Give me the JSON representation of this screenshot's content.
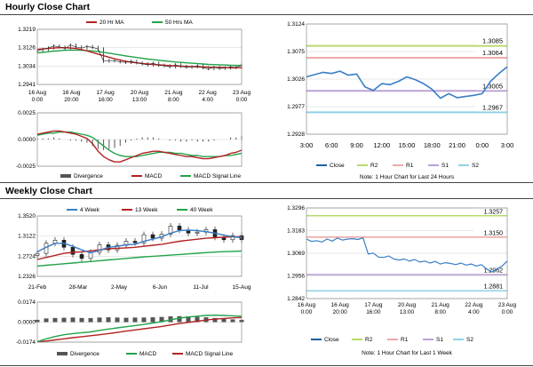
{
  "sections": {
    "hourly_title": "Hourly Close Chart",
    "weekly_title": "Weekly Close Chart"
  },
  "colors": {
    "close": "#1f5f9e",
    "close_light": "#3a7ec6",
    "ma_short": "#b22222",
    "ma_long": "#22a34a",
    "r2": "#b7d96b",
    "r1": "#ecaaa7",
    "s1": "#b9a2d6",
    "s2": "#8fd2e6",
    "grid": "#d0d0d0",
    "divergence": "#555555",
    "candle": "#222222"
  },
  "chart_data": [
    {
      "id": "hourly_price",
      "type": "line",
      "legend": [
        "20 Hr MA",
        "50 Hrs MA"
      ],
      "x_labels": [
        "16 Aug\n0:00",
        "16 Aug\n20:00",
        "17 Aug\n16:00",
        "20 Aug\n13:00",
        "21 Aug\n8:00",
        "22 Aug\n4:00",
        "23 Aug\n0:00"
      ],
      "y_ticks": [
        "1.3219",
        "1.3126",
        "1.3034",
        "1.2941"
      ],
      "ylim": [
        1.2941,
        1.3219
      ],
      "series": [
        {
          "name": "Close",
          "values": [
            1.311,
            1.3118,
            1.3125,
            1.3135,
            1.313,
            1.3122,
            1.314,
            1.313,
            1.3125,
            1.3132,
            1.3128,
            1.312,
            1.3058,
            1.3062,
            1.306,
            1.3055,
            1.3052,
            1.3058,
            1.305,
            1.3045,
            1.304,
            1.3048,
            1.3038,
            1.3035,
            1.303,
            1.304,
            1.3032,
            1.3028,
            1.303,
            1.3035,
            1.3025,
            1.302,
            1.3027,
            1.3022,
            1.3024,
            1.303,
            1.3026,
            1.3038
          ]
        },
        {
          "name": "20 Hr MA",
          "values": [
            1.3118,
            1.312,
            1.3122,
            1.3125,
            1.3126,
            1.3126,
            1.3125,
            1.3122,
            1.3117,
            1.311,
            1.3102,
            1.3094,
            1.3086,
            1.3078,
            1.307,
            1.3064,
            1.3058,
            1.3053,
            1.305,
            1.3047,
            1.3044,
            1.3042,
            1.304,
            1.3038,
            1.3036,
            1.3034,
            1.3033,
            1.3032,
            1.3031,
            1.303,
            1.3029,
            1.3028,
            1.3027,
            1.3026,
            1.3026,
            1.3025,
            1.3025,
            1.3026
          ]
        },
        {
          "name": "50 Hrs MA",
          "values": [
            1.31,
            1.3103,
            1.3106,
            1.3109,
            1.3111,
            1.3113,
            1.3114,
            1.3114,
            1.3113,
            1.3112,
            1.311,
            1.3107,
            1.3103,
            1.3099,
            1.3094,
            1.309,
            1.3085,
            1.3081,
            1.3077,
            1.3073,
            1.3069,
            1.3066,
            1.3063,
            1.306,
            1.3057,
            1.3054,
            1.3052,
            1.305,
            1.3048,
            1.3046,
            1.3044,
            1.3042,
            1.3041,
            1.304,
            1.3039,
            1.3038,
            1.3037,
            1.3037
          ]
        }
      ]
    },
    {
      "id": "hourly_macd",
      "type": "line",
      "legend": [
        "Divergence",
        "MACD",
        "MACD Signal Line"
      ],
      "y_ticks": [
        "0.0025",
        "0.0000",
        "-0.0025"
      ],
      "ylim": [
        -0.0025,
        0.0025
      ],
      "series": [
        {
          "name": "MACD",
          "values": [
            0.0005,
            0.0006,
            0.0007,
            0.0008,
            0.0008,
            0.0007,
            0.0006,
            0.0005,
            0.0003,
            0.0001,
            -0.0004,
            -0.0011,
            -0.0016,
            -0.0019,
            -0.0021,
            -0.0021,
            -0.0019,
            -0.0017,
            -0.0015,
            -0.0013,
            -0.0012,
            -0.0011,
            -0.0011,
            -0.0012,
            -0.0013,
            -0.0014,
            -0.0015,
            -0.0016,
            -0.0016,
            -0.0017,
            -0.0018,
            -0.0018,
            -0.0017,
            -0.0016,
            -0.0015,
            -0.0013,
            -0.0012,
            -0.001
          ]
        },
        {
          "name": "MACD Signal Line",
          "values": [
            0.0004,
            0.0005,
            0.0006,
            0.0006,
            0.0007,
            0.0007,
            0.0007,
            0.0006,
            0.0005,
            0.0004,
            0.0002,
            -0.0002,
            -0.0006,
            -0.001,
            -0.0013,
            -0.0015,
            -0.0016,
            -0.0016,
            -0.0016,
            -0.0015,
            -0.0014,
            -0.0013,
            -0.0012,
            -0.0012,
            -0.0012,
            -0.0013,
            -0.0013,
            -0.0014,
            -0.0015,
            -0.0015,
            -0.0016,
            -0.0016,
            -0.0016,
            -0.0016,
            -0.0015,
            -0.0015,
            -0.0014,
            -0.0013
          ]
        }
      ]
    },
    {
      "id": "hourly_24h",
      "type": "line",
      "note": "Note: 1 Hour Chart for Last 24 Hours",
      "x_labels": [
        "3:00",
        "6:00",
        "9:00",
        "12:00",
        "15:00",
        "18:00",
        "21:00",
        "0:00",
        "3:00"
      ],
      "y_ticks": [
        "1.3124",
        "1.3075",
        "1.3026",
        "1.2977",
        "1.2928"
      ],
      "ylim": [
        1.2928,
        1.3124
      ],
      "levels": [
        {
          "name": "R2",
          "value": 1.3085,
          "label": "1.3085"
        },
        {
          "name": "R1",
          "value": 1.3064,
          "label": "1.3064"
        },
        {
          "name": "S1",
          "value": 1.3005,
          "label": "1.3005"
        },
        {
          "name": "S2",
          "value": 1.2967,
          "label": "1.2967"
        }
      ],
      "legend": [
        "Close",
        "R2",
        "R1",
        "S1",
        "S2"
      ],
      "series": [
        {
          "name": "Close",
          "values": [
            1.303,
            1.3034,
            1.3038,
            1.3036,
            1.304,
            1.3033,
            1.3035,
            1.3012,
            1.3006,
            1.3018,
            1.3016,
            1.3022,
            1.303,
            1.3025,
            1.3018,
            1.3008,
            1.2992,
            1.3,
            1.2993,
            1.2995,
            1.2997,
            1.3,
            1.3022,
            1.3036,
            1.3048
          ]
        }
      ]
    },
    {
      "id": "weekly_price",
      "type": "line",
      "legend": [
        "4 Week",
        "13 Week",
        "40 Week"
      ],
      "x_labels": [
        "21-Feb",
        "28-Mar",
        "2-May",
        "6-Jun",
        "11-Jul",
        "15-Aug"
      ],
      "y_ticks": [
        "1.3520",
        "1.3122",
        "1.2724",
        "1.2326"
      ],
      "ylim": [
        1.2326,
        1.352
      ],
      "series": [
        {
          "name": "Close",
          "values": [
            1.278,
            1.298,
            1.304,
            1.29,
            1.276,
            1.268,
            1.28,
            1.295,
            1.285,
            1.294,
            1.302,
            1.299,
            1.315,
            1.308,
            1.316,
            1.332,
            1.324,
            1.318,
            1.32,
            1.325,
            1.31,
            1.305,
            1.313,
            1.305
          ]
        },
        {
          "name": "4 Week",
          "values": [
            1.281,
            1.29,
            1.298,
            1.298,
            1.292,
            1.285,
            1.279,
            1.284,
            1.29,
            1.292,
            1.295,
            1.296,
            1.302,
            1.306,
            1.311,
            1.318,
            1.323,
            1.324,
            1.323,
            1.321,
            1.318,
            1.314,
            1.311,
            1.309
          ]
        },
        {
          "name": "13 Week",
          "values": [
            1.266,
            1.27,
            1.274,
            1.278,
            1.28,
            1.281,
            1.283,
            1.285,
            1.287,
            1.288,
            1.289,
            1.29,
            1.292,
            1.294,
            1.296,
            1.299,
            1.302,
            1.304,
            1.306,
            1.308,
            1.309,
            1.31,
            1.311,
            1.311
          ]
        },
        {
          "name": "40 Week",
          "values": [
            1.253,
            1.2545,
            1.256,
            1.2575,
            1.259,
            1.2605,
            1.262,
            1.2635,
            1.265,
            1.2665,
            1.268,
            1.2695,
            1.271,
            1.2722,
            1.2734,
            1.2746,
            1.2758,
            1.277,
            1.2782,
            1.2794,
            1.2806,
            1.2814,
            1.282,
            1.2826
          ]
        }
      ]
    },
    {
      "id": "weekly_macd",
      "type": "line",
      "legend": [
        "Divergence",
        "MACD",
        "MACD Signal Line"
      ],
      "y_ticks": [
        "0.0174",
        "0.0000",
        "-0.0174"
      ],
      "ylim": [
        -0.0174,
        0.0174
      ],
      "series": [
        {
          "name": "Divergence",
          "values": [
            0.002,
            0.0032,
            0.0036,
            0.0038,
            0.004,
            0.0036,
            0.0035,
            0.004,
            0.0042,
            0.004,
            0.0038,
            0.004,
            0.004,
            0.0042,
            0.0045,
            0.005,
            0.0052,
            0.005,
            0.0046,
            0.0042,
            0.0036,
            0.003,
            0.0024,
            0.002
          ]
        },
        {
          "name": "MACD",
          "values": [
            -0.017,
            -0.0145,
            -0.0125,
            -0.011,
            -0.01,
            -0.0092,
            -0.0085,
            -0.0072,
            -0.006,
            -0.005,
            -0.004,
            -0.003,
            -0.002,
            -0.0008,
            0.0005,
            0.002,
            0.0035,
            0.0045,
            0.0052,
            0.0058,
            0.006,
            0.0058,
            0.0055,
            0.0052
          ]
        },
        {
          "name": "MACD Signal Line",
          "values": [
            -0.0172,
            -0.0165,
            -0.0155,
            -0.0145,
            -0.0135,
            -0.0127,
            -0.0118,
            -0.011,
            -0.01,
            -0.009,
            -0.0078,
            -0.0068,
            -0.0058,
            -0.0048,
            -0.0038,
            -0.0025,
            -0.0012,
            -0.0002,
            0.0008,
            0.0018,
            0.0026,
            0.0032,
            0.0037,
            0.004
          ]
        }
      ]
    },
    {
      "id": "weekly_1h",
      "type": "line",
      "note": "Note: 1 Hour Chart for Last 1 Week",
      "x_labels": [
        "16 Aug\n0:00",
        "16 Aug\n20:00",
        "17 Aug\n16:00",
        "20 Aug\n13:00",
        "21 Aug\n8:00",
        "22 Aug\n4:00",
        "23 Aug\n0:00"
      ],
      "y_ticks": [
        "1.3296",
        "1.3183",
        "1.3069",
        "1.2956",
        "1.2842"
      ],
      "ylim": [
        1.2842,
        1.3296
      ],
      "levels": [
        {
          "name": "R2",
          "value": 1.3257,
          "label": "1.3257"
        },
        {
          "name": "R1",
          "value": 1.315,
          "label": "1.3150"
        },
        {
          "name": "S1",
          "value": 1.2962,
          "label": "1.2962"
        },
        {
          "name": "S2",
          "value": 1.2881,
          "label": "1.2881"
        }
      ],
      "legend": [
        "Close",
        "R2",
        "R1",
        "S1",
        "S2"
      ],
      "series": [
        {
          "name": "Close",
          "values": [
            1.314,
            1.3128,
            1.3132,
            1.3125,
            1.314,
            1.313,
            1.3145,
            1.3135,
            1.314,
            1.3142,
            1.3138,
            1.3146,
            1.3065,
            1.307,
            1.305,
            1.3048,
            1.3055,
            1.304,
            1.3035,
            1.304,
            1.303,
            1.3038,
            1.3025,
            1.303,
            1.302,
            1.3028,
            1.3015,
            1.3022,
            1.3018,
            1.3012,
            1.302,
            1.301,
            1.3015,
            1.3005,
            1.3012,
            1.299,
            1.2975,
            1.299,
            1.3005,
            1.303
          ]
        }
      ]
    }
  ]
}
